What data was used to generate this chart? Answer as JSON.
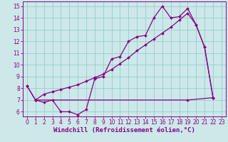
{
  "bg_color": "#cce8e8",
  "line_color": "#880088",
  "grid_color": "#99cccc",
  "xlabel": "Windchill (Refroidissement éolien,°C)",
  "xlim": [
    -0.5,
    23.5
  ],
  "ylim": [
    5.6,
    15.4
  ],
  "yticks": [
    6,
    7,
    8,
    9,
    10,
    11,
    12,
    13,
    14,
    15
  ],
  "xticks": [
    0,
    1,
    2,
    3,
    4,
    5,
    6,
    7,
    8,
    9,
    10,
    11,
    12,
    13,
    14,
    15,
    16,
    17,
    18,
    19,
    20,
    21,
    22,
    23
  ],
  "line1_x": [
    0,
    1,
    2,
    3,
    4,
    5,
    6,
    7,
    8,
    9,
    10,
    11,
    12,
    13,
    14,
    15,
    16,
    17,
    18,
    19,
    20,
    21,
    22
  ],
  "line1_y": [
    8.2,
    7.0,
    6.8,
    7.0,
    6.0,
    6.0,
    5.75,
    6.2,
    8.8,
    9.0,
    10.5,
    10.7,
    12.0,
    12.4,
    12.5,
    14.0,
    15.0,
    14.0,
    14.1,
    14.8,
    13.4,
    11.5,
    7.2
  ],
  "line2_x": [
    0,
    1,
    2,
    3,
    4,
    5,
    6,
    7,
    8,
    9,
    10,
    11,
    12,
    13,
    14,
    15,
    16,
    17,
    18,
    19,
    20,
    21,
    22
  ],
  "line2_y": [
    8.2,
    7.0,
    7.5,
    7.7,
    7.9,
    8.1,
    8.3,
    8.6,
    8.9,
    9.2,
    9.6,
    10.1,
    10.6,
    11.2,
    11.7,
    12.2,
    12.7,
    13.2,
    13.8,
    14.4,
    13.4,
    11.5,
    7.2
  ],
  "line3_x": [
    1,
    19,
    22
  ],
  "line3_y": [
    7.0,
    7.0,
    7.2
  ],
  "markersize": 2.0,
  "linewidth": 0.9,
  "xlabel_fontsize": 6.5,
  "tick_fontsize": 5.5
}
